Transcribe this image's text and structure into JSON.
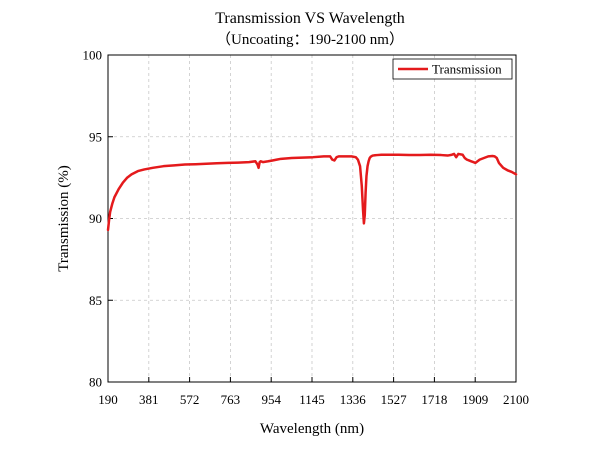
{
  "chart_data": {
    "type": "line",
    "title": "Transmission VS Wavelength",
    "subtitle": "（Uncoating：190-2100 nm）",
    "xlabel": "Wavelength (nm)",
    "ylabel": "Transmission (%)",
    "xlim": [
      190,
      2100
    ],
    "ylim": [
      80,
      100
    ],
    "x_ticks": [
      190,
      381,
      572,
      763,
      954,
      1145,
      1336,
      1527,
      1718,
      1909,
      2100
    ],
    "y_ticks": [
      80,
      85,
      90,
      95,
      100
    ],
    "grid": true,
    "legend_position": "top-right",
    "series": [
      {
        "name": "Transmission",
        "color": "#e41a1c",
        "x": [
          190,
          195,
          200,
          210,
          220,
          240,
          260,
          280,
          300,
          330,
          360,
          400,
          450,
          500,
          550,
          600,
          650,
          700,
          750,
          800,
          850,
          880,
          890,
          895,
          900,
          905,
          915,
          940,
          960,
          980,
          1000,
          1050,
          1100,
          1150,
          1200,
          1230,
          1240,
          1250,
          1260,
          1270,
          1300,
          1330,
          1350,
          1360,
          1370,
          1378,
          1384,
          1388,
          1392,
          1396,
          1400,
          1405,
          1410,
          1415,
          1420,
          1425,
          1430,
          1440,
          1450,
          1470,
          1500,
          1550,
          1600,
          1650,
          1700,
          1750,
          1780,
          1800,
          1810,
          1820,
          1830,
          1850,
          1860,
          1870,
          1880,
          1890,
          1900,
          1910,
          1920,
          1930,
          1950,
          1970,
          1990,
          2000,
          2010,
          2020,
          2040,
          2060,
          2080,
          2100
        ],
        "y": [
          89.3,
          89.9,
          90.4,
          90.9,
          91.3,
          91.8,
          92.2,
          92.5,
          92.7,
          92.9,
          93.0,
          93.1,
          93.2,
          93.25,
          93.3,
          93.32,
          93.35,
          93.38,
          93.4,
          93.42,
          93.45,
          93.5,
          93.3,
          93.1,
          93.45,
          93.5,
          93.45,
          93.5,
          93.55,
          93.6,
          93.65,
          93.7,
          93.72,
          93.75,
          93.8,
          93.8,
          93.6,
          93.55,
          93.75,
          93.8,
          93.8,
          93.8,
          93.75,
          93.6,
          93.2,
          92.0,
          90.5,
          89.7,
          90.2,
          91.6,
          92.6,
          93.2,
          93.5,
          93.7,
          93.78,
          93.82,
          93.85,
          93.87,
          93.88,
          93.9,
          93.9,
          93.9,
          93.88,
          93.88,
          93.9,
          93.88,
          93.85,
          93.9,
          93.95,
          93.75,
          93.95,
          93.9,
          93.7,
          93.6,
          93.55,
          93.5,
          93.45,
          93.4,
          93.5,
          93.6,
          93.7,
          93.8,
          93.82,
          93.8,
          93.7,
          93.4,
          93.1,
          92.95,
          92.85,
          92.7
        ]
      }
    ]
  }
}
